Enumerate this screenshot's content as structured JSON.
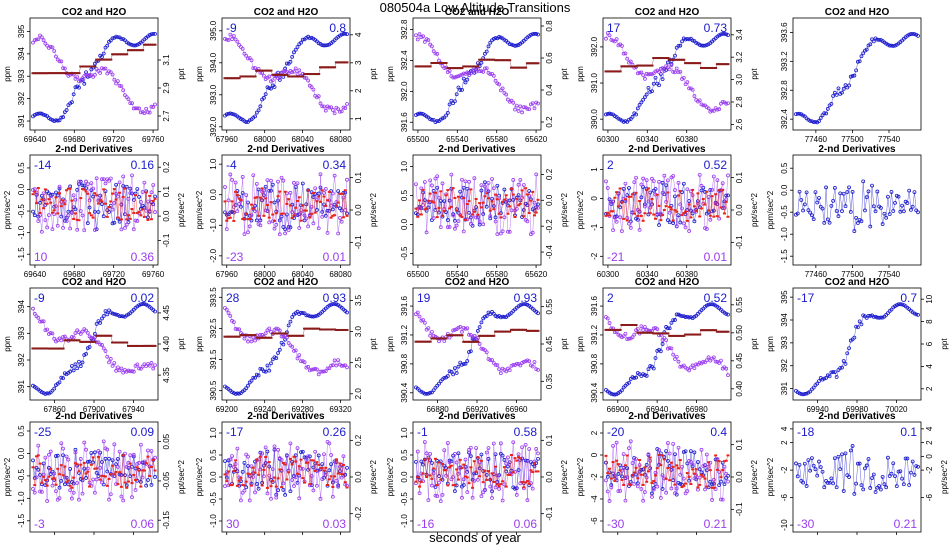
{
  "figure": {
    "title": "080504a   Low Altitude Transitions",
    "xlabel": "seconds of year"
  },
  "colors": {
    "co2": "#1a1acd",
    "h2o": "#9a3df0",
    "derivative": "#e8221c",
    "maroon": "#8b1a1a",
    "axis": "#000000"
  },
  "panel_labels": {
    "top": "CO2 and H2O",
    "bottom": "2-nd Derivatives",
    "left_top": "ppm",
    "right_top": "ppt",
    "left_bottom": "ppm/sec^2",
    "right_bottom": "ppt/sec^2"
  },
  "chart_data": [
    {
      "type": "scatter",
      "title": "CO2 and H2O",
      "ylabel": "ppm",
      "y2label": "ppt",
      "xticks": [
        "69640",
        "69680",
        "69720",
        "69760"
      ],
      "yticks": [
        "391",
        "392",
        "393",
        "394",
        "395"
      ],
      "y2ticks": [
        "2.7",
        "2.9",
        "3.1"
      ],
      "xlim": [
        69635,
        69765
      ],
      "ylim": [
        390.6,
        395.6
      ],
      "y2lim": [
        2.6,
        3.4
      ],
      "corner_left": "",
      "corner_right": ""
    },
    {
      "type": "scatter",
      "title": "CO2 and H2O",
      "ylabel": "ppm",
      "y2label": "ppt",
      "xticks": [
        "67960",
        "68000",
        "68040",
        "68080"
      ],
      "yticks": [
        "392.0",
        "393.0",
        "394.0",
        "395.0"
      ],
      "y2ticks": [
        "1",
        "2",
        "3",
        "4"
      ],
      "xlim": [
        67955,
        68090
      ],
      "ylim": [
        391.9,
        395.4
      ],
      "y2lim": [
        0.6,
        4.6
      ],
      "corner_left": "-9",
      "corner_right": "0.8"
    },
    {
      "type": "scatter",
      "title": "CO2 and H2O",
      "ylabel": "ppm",
      "y2label": "ppt",
      "xticks": [
        "65500",
        "65540",
        "65580",
        "65620"
      ],
      "yticks": [
        "391.6",
        "392.0",
        "392.4",
        "392.8"
      ],
      "y2ticks": [
        "0.2",
        "0.4",
        "0.6",
        "0.8"
      ],
      "xlim": [
        65495,
        65625
      ],
      "ylim": [
        391.5,
        392.95
      ],
      "y2lim": [
        0.15,
        0.85
      ],
      "corner_left": "",
      "corner_right": ""
    },
    {
      "type": "scatter",
      "title": "CO2 and H2O",
      "ylabel": "ppm",
      "y2label": "ppt",
      "xticks": [
        "60300",
        "60340",
        "60380"
      ],
      "yticks": [
        "390.0",
        "391.0",
        "392.0"
      ],
      "y2ticks": [
        "2.6",
        "2.8",
        "3.0",
        "3.2",
        "3.4"
      ],
      "xlim": [
        60295,
        60425
      ],
      "ylim": [
        389.7,
        392.8
      ],
      "y2lim": [
        2.55,
        3.55
      ],
      "corner_left": "17",
      "corner_right": "0.73"
    },
    {
      "type": "scatter",
      "title": "CO2 and H2O",
      "ylabel": "",
      "y2label": "",
      "xticks": [
        "77460",
        "77500",
        "77540"
      ],
      "yticks": [
        "392.4",
        "392.8",
        "393.2",
        "393.6"
      ],
      "y2ticks": [],
      "xlim": [
        77435,
        77575
      ],
      "ylim": [
        392.25,
        393.8
      ],
      "y2lim": null,
      "corner_left": "",
      "corner_right": ""
    },
    {
      "type": "scatter",
      "title": "2-nd Derivatives",
      "ylabel": "ppm/sec^2",
      "y2label": "ppt/sec^2",
      "xticks": [
        "69640",
        "69680",
        "69720",
        "69760"
      ],
      "yticks": [
        "-1.5",
        "-1.0",
        "-0.5",
        "0.0",
        "0.5"
      ],
      "y2ticks": [
        "-0.1",
        "0.0",
        "0.1",
        "0.2"
      ],
      "xlim": [
        69635,
        69765
      ],
      "ylim": [
        -1.75,
        0.8
      ],
      "y2lim": [
        -0.2,
        0.25
      ],
      "corner_left": "-14",
      "corner_right": "0.16",
      "corner_bl": "10",
      "corner_br": "0.36"
    },
    {
      "type": "scatter",
      "title": "2-nd Derivatives",
      "ylabel": "ppm/sec^2",
      "y2label": "ppt/sec^2",
      "xticks": [
        "67960",
        "68000",
        "68040",
        "68080"
      ],
      "yticks": [
        "-2.0",
        "-1.0",
        "0.0",
        "1.0"
      ],
      "y2ticks": [
        "-0.1",
        "0.0",
        "0.1"
      ],
      "xlim": [
        67955,
        68090
      ],
      "ylim": [
        -2.3,
        1.3
      ],
      "y2lim": [
        -0.17,
        0.17
      ],
      "corner_left": "-4",
      "corner_right": "0.34",
      "corner_bl": "-23",
      "corner_br": "0.01"
    },
    {
      "type": "scatter",
      "title": "2-nd Derivatives",
      "ylabel": "",
      "y2label": "ppt/sec^2",
      "xticks": [
        "65500",
        "65540",
        "65580",
        "65620"
      ],
      "yticks": [
        "-0.5",
        "0.0",
        "0.5",
        "1.0"
      ],
      "y2ticks": [
        "-0.4",
        "-0.2",
        "0.0",
        "0.2"
      ],
      "xlim": [
        65495,
        65625
      ],
      "ylim": [
        -0.7,
        1.2
      ],
      "y2lim": [
        -0.5,
        0.35
      ],
      "corner_left": "",
      "corner_right": "",
      "corner_bl": "",
      "corner_br": ""
    },
    {
      "type": "scatter",
      "title": "2-nd Derivatives",
      "ylabel": "ppm/sec^2",
      "y2label": "ppt/sec^2",
      "xticks": [
        "60300",
        "60340",
        "60380"
      ],
      "yticks": [
        "-2",
        "-1",
        "0",
        "1"
      ],
      "y2ticks": [
        "-0.1",
        "0.0",
        "0.1"
      ],
      "xlim": [
        60295,
        60425
      ],
      "ylim": [
        -2.3,
        1.5
      ],
      "y2lim": [
        -0.17,
        0.17
      ],
      "corner_left": "2",
      "corner_right": "0.52",
      "corner_bl": "-21",
      "corner_br": "0.01"
    },
    {
      "type": "scatter",
      "title": "2-nd Derivatives",
      "ylabel": "ppm/sec^2",
      "y2label": "",
      "xticks": [
        "77460",
        "77500",
        "77540"
      ],
      "yticks": [
        "-1.5",
        "-1.0",
        "-0.5",
        "0.0",
        "0.5"
      ],
      "y2ticks": [],
      "xlim": [
        77435,
        77575
      ],
      "ylim": [
        -1.7,
        0.8
      ],
      "y2lim": null,
      "corner_left": "",
      "corner_right": "",
      "corner_bl": "",
      "corner_br": ""
    },
    {
      "type": "scatter",
      "title": "CO2 and H2O",
      "ylabel": "ppm",
      "y2label": "ppt",
      "xticks": [
        "67860",
        "67900",
        "67940"
      ],
      "yticks": [
        "391",
        "392",
        "393",
        "394"
      ],
      "y2ticks": [
        "4.35",
        "4.40",
        "4.45"
      ],
      "xlim": [
        67835,
        67965
      ],
      "ylim": [
        390.5,
        394.7
      ],
      "y2lim": [
        4.31,
        4.49
      ],
      "corner_left": "-9",
      "corner_right": "0.02"
    },
    {
      "type": "scatter",
      "title": "CO2 and H2O",
      "ylabel": "ppm",
      "y2label": "ppt",
      "xticks": [
        "69200",
        "69240",
        "69280",
        "69320"
      ],
      "yticks": [
        "390.5",
        "391.5",
        "392.5",
        "393.5"
      ],
      "y2ticks": [
        "2.0",
        "2.5",
        "3.0",
        "3.5"
      ],
      "xlim": [
        69195,
        69330
      ],
      "ylim": [
        390.2,
        393.8
      ],
      "y2lim": [
        1.9,
        3.7
      ],
      "corner_left": "28",
      "corner_right": "0.93"
    },
    {
      "type": "scatter",
      "title": "CO2 and H2O",
      "ylabel": "ppm",
      "y2label": "ppt",
      "xticks": [
        "66880",
        "66920",
        "66960"
      ],
      "yticks": [
        "390.4",
        "390.8",
        "391.2",
        "391.6"
      ],
      "y2ticks": [
        "0.35",
        "0.45",
        "0.55"
      ],
      "xlim": [
        66855,
        66985
      ],
      "ylim": [
        390.3,
        391.85
      ],
      "y2lim": [
        0.3,
        0.6
      ],
      "corner_left": "19",
      "corner_right": "0.93"
    },
    {
      "type": "scatter",
      "title": "CO2 and H2O",
      "ylabel": "ppm",
      "y2label": "ppt",
      "xticks": [
        "66900",
        "66940",
        "66980"
      ],
      "yticks": [
        "390.4",
        "390.8",
        "391.2",
        "391.6"
      ],
      "y2ticks": [
        "0.40",
        "0.45",
        "0.50",
        "0.55"
      ],
      "xlim": [
        66885,
        67015
      ],
      "ylim": [
        390.3,
        391.85
      ],
      "y2lim": [
        0.38,
        0.58
      ],
      "corner_left": "2",
      "corner_right": "0.52"
    },
    {
      "type": "scatter",
      "title": "CO2 and H2O",
      "ylabel": "ppm",
      "y2label": "ppt",
      "xticks": [
        "69940",
        "69980",
        "70020"
      ],
      "yticks": [
        "391",
        "392",
        "393",
        "394",
        "395"
      ],
      "y2ticks": [
        "2",
        "4",
        "6",
        "8",
        "10"
      ],
      "xlim": [
        69915,
        70045
      ],
      "ylim": [
        390.5,
        395.4
      ],
      "y2lim": [
        1,
        11
      ],
      "corner_left": "-17",
      "corner_right": "0.7"
    },
    {
      "type": "scatter",
      "title": "2-nd Derivatives",
      "ylabel": "ppm/sec^2",
      "y2label": "ppt/sec^2",
      "xticks": [
        "67860",
        "67900",
        "67940"
      ],
      "yticks": [
        "-1.5",
        "-1.0",
        "-0.5",
        "0.0",
        "0.5"
      ],
      "y2ticks": [
        "-0.15",
        "-0.05",
        "0.05"
      ],
      "xlim": [
        67835,
        67965
      ],
      "ylim": [
        -1.75,
        0.7
      ],
      "y2lim": [
        -0.18,
        0.1
      ],
      "corner_left": "-25",
      "corner_right": "0.09",
      "corner_bl": "-3",
      "corner_br": "0.06"
    },
    {
      "type": "scatter",
      "title": "2-nd Derivatives",
      "ylabel": "ppm/sec^2",
      "y2label": "ppt/sec^2",
      "xticks": [
        "69200",
        "69240",
        "69280",
        "69320"
      ],
      "yticks": [
        "-1.0",
        "-0.5",
        "0.0",
        "0.5",
        "1.0"
      ],
      "y2ticks": [
        "-0.2",
        "0.0",
        "0.2"
      ],
      "xlim": [
        69195,
        69330
      ],
      "ylim": [
        -1.25,
        1.25
      ],
      "y2lim": [
        -0.3,
        0.3
      ],
      "corner_left": "-17",
      "corner_right": "0.26",
      "corner_bl": "30",
      "corner_br": "0.03"
    },
    {
      "type": "scatter",
      "title": "2-nd Derivatives",
      "ylabel": "ppm/sec^2",
      "y2label": "ppt/sec^2",
      "xticks": [
        "66880",
        "66920",
        "66960"
      ],
      "yticks": [
        "-1.0",
        "-0.5",
        "0.0",
        "0.5",
        "1.0"
      ],
      "y2ticks": [
        "-0.1",
        "0.0",
        "0.1"
      ],
      "xlim": [
        66855,
        66985
      ],
      "ylim": [
        -1.25,
        1.25
      ],
      "y2lim": [
        -0.15,
        0.15
      ],
      "corner_left": "-1",
      "corner_right": "0.58",
      "corner_bl": "-16",
      "corner_br": "0.06"
    },
    {
      "type": "scatter",
      "title": "2-nd Derivatives",
      "ylabel": "ppm/sec^2",
      "y2label": "ppt/sec^2",
      "xticks": [
        "66900",
        "66940",
        "66980"
      ],
      "yticks": [
        "-6",
        "-4",
        "-2",
        "0",
        "2"
      ],
      "y2ticks": [
        "-0.1",
        "0.0",
        "0.1"
      ],
      "xlim": [
        66885,
        67015
      ],
      "ylim": [
        -7,
        3
      ],
      "y2lim": [
        -0.17,
        0.17
      ],
      "corner_left": "-20",
      "corner_right": "0.4",
      "corner_bl": "-30",
      "corner_br": "0.21"
    },
    {
      "type": "scatter",
      "title": "2-nd Derivatives",
      "ylabel": "ppm/sec^2",
      "y2label": "ppt/sec^2",
      "xticks": [
        "69940",
        "69980",
        "70020"
      ],
      "yticks": [
        "-10",
        "-6",
        "-2",
        "2",
        "4"
      ],
      "y2ticks": [
        "-6",
        "-2",
        "0",
        "2",
        "4"
      ],
      "xlim": [
        69915,
        70045
      ],
      "ylim": [
        -11,
        5
      ],
      "y2lim": [
        -11,
        5
      ],
      "corner_left": "-18",
      "corner_right": "0.1",
      "corner_bl": "-30",
      "corner_br": "0.21"
    }
  ]
}
